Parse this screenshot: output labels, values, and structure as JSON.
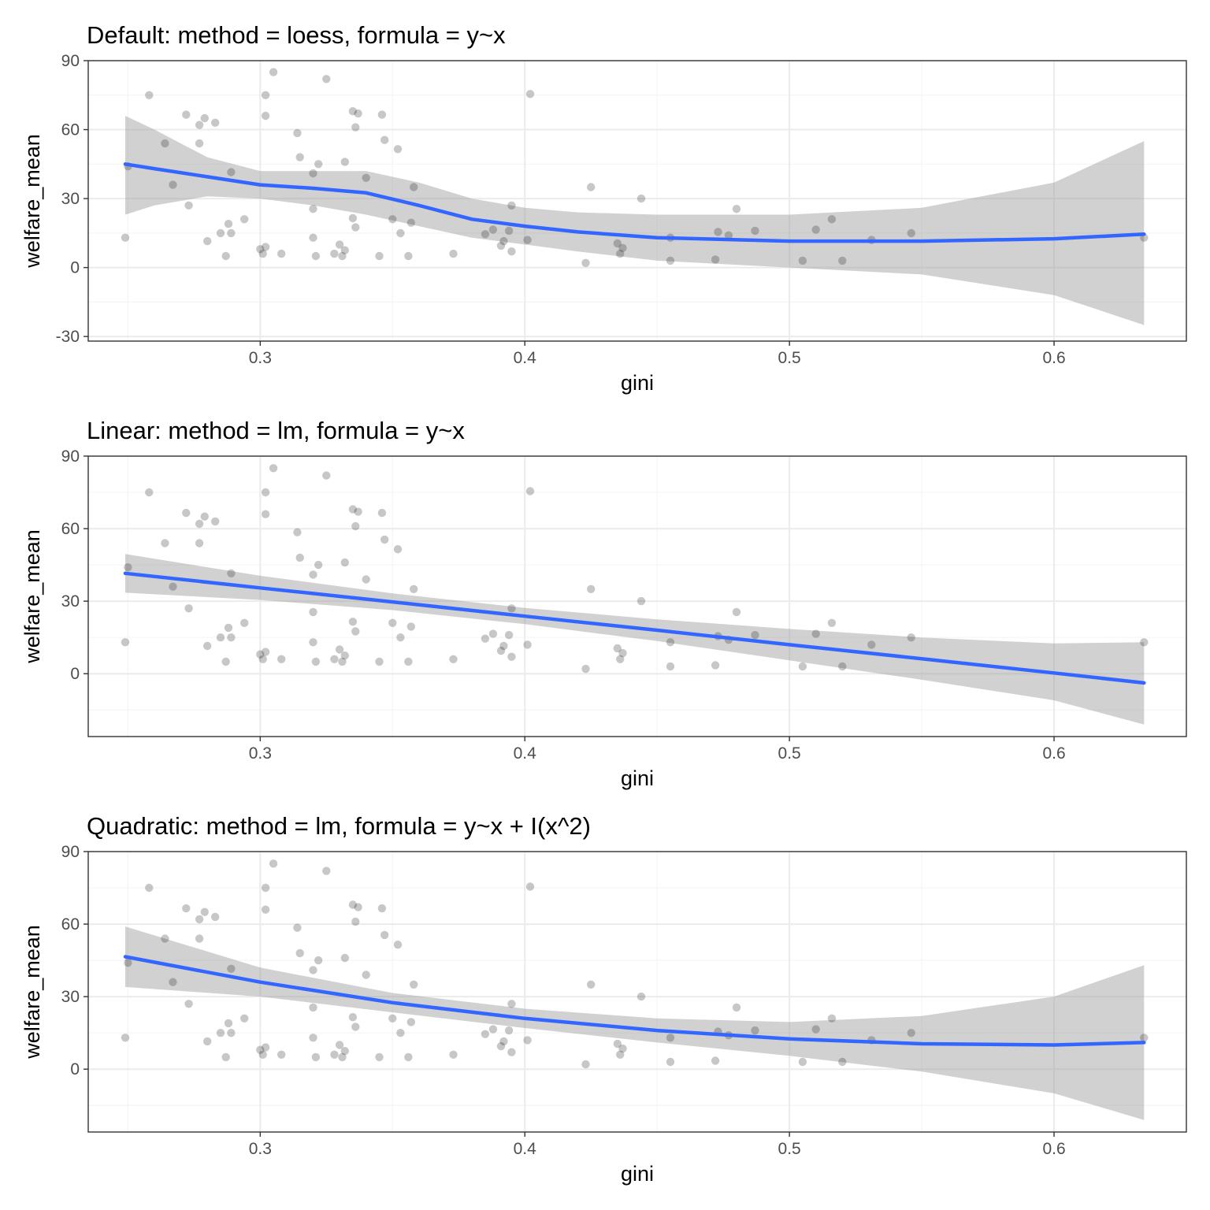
{
  "points": {
    "x": [
      0.249,
      0.25,
      0.258,
      0.264,
      0.267,
      0.272,
      0.273,
      0.277,
      0.277,
      0.279,
      0.28,
      0.283,
      0.285,
      0.287,
      0.288,
      0.289,
      0.289,
      0.294,
      0.3,
      0.301,
      0.302,
      0.302,
      0.302,
      0.305,
      0.308,
      0.314,
      0.315,
      0.32,
      0.32,
      0.32,
      0.321,
      0.322,
      0.325,
      0.328,
      0.33,
      0.331,
      0.332,
      0.332,
      0.335,
      0.335,
      0.336,
      0.336,
      0.337,
      0.34,
      0.345,
      0.346,
      0.347,
      0.35,
      0.352,
      0.353,
      0.356,
      0.357,
      0.358,
      0.373,
      0.385,
      0.388,
      0.391,
      0.392,
      0.394,
      0.395,
      0.395,
      0.401,
      0.402,
      0.423,
      0.425,
      0.435,
      0.436,
      0.437,
      0.444,
      0.455,
      0.455,
      0.472,
      0.473,
      0.477,
      0.48,
      0.487,
      0.505,
      0.51,
      0.516,
      0.52,
      0.531,
      0.546,
      0.634
    ],
    "y": [
      13,
      44,
      75,
      54,
      36,
      66.5,
      27,
      62,
      54,
      65,
      11.5,
      63,
      15,
      5,
      19,
      15,
      41.5,
      21,
      8,
      6,
      9,
      66,
      75,
      85,
      6,
      58.5,
      48,
      25.5,
      13,
      41,
      5,
      45,
      82,
      6,
      10,
      5,
      46,
      7.5,
      68,
      21.5,
      17.5,
      61,
      67,
      39,
      5,
      66.5,
      55.5,
      21,
      51.5,
      15,
      5,
      19.5,
      35,
      6,
      14.5,
      16.5,
      9.5,
      11.5,
      16,
      27,
      7,
      12,
      75.5,
      2,
      35,
      10.5,
      6,
      8.5,
      30,
      13,
      3,
      3.5,
      15.5,
      14,
      25.5,
      16,
      3,
      16.5,
      21,
      3,
      12,
      15,
      13
    ],
    "color": "#000000",
    "opacity": 0.22
  },
  "panels": [
    {
      "title": "Default: method = loess, formula = y~x",
      "xlabel": "gini",
      "ylabel": "welfare_mean",
      "xlim": [
        0.235,
        0.65
      ],
      "ylim": [
        -32,
        90
      ],
      "xticks": [
        0.3,
        0.4,
        0.5,
        0.6
      ],
      "xtick_labels": [
        "0.3",
        "0.4",
        "0.5",
        "0.6"
      ],
      "yticks": [
        -30,
        0,
        30,
        60,
        90
      ],
      "ytick_labels": [
        "-30",
        "0",
        "30",
        "60",
        "90"
      ],
      "chart_data": {
        "type": "scatter",
        "smooth": "loess",
        "fit": {
          "x": [
            0.249,
            0.26,
            0.28,
            0.3,
            0.32,
            0.34,
            0.36,
            0.38,
            0.4,
            0.42,
            0.45,
            0.5,
            0.55,
            0.6,
            0.634
          ],
          "y": [
            45,
            43,
            39.5,
            36,
            34.5,
            32.5,
            27,
            21,
            18,
            15.5,
            13,
            11.5,
            11.5,
            12.5,
            14.5
          ],
          "lower": [
            23,
            27,
            31,
            30,
            27,
            23,
            18,
            13,
            10,
            7,
            3,
            0,
            -3,
            -12,
            -25
          ],
          "upper": [
            66,
            60,
            48,
            42,
            42,
            42,
            37,
            30,
            26,
            24,
            23,
            23,
            26,
            37,
            55
          ]
        }
      }
    },
    {
      "title": "Linear: method = lm, formula = y~x",
      "xlabel": "gini",
      "ylabel": "welfare_mean",
      "xlim": [
        0.235,
        0.65
      ],
      "ylim": [
        -26,
        90
      ],
      "xticks": [
        0.3,
        0.4,
        0.5,
        0.6
      ],
      "xtick_labels": [
        "0.3",
        "0.4",
        "0.5",
        "0.6"
      ],
      "yticks": [
        0,
        30,
        60,
        90
      ],
      "ytick_labels": [
        "0",
        "30",
        "60",
        "90"
      ],
      "chart_data": {
        "type": "scatter",
        "smooth": "lm",
        "fit": {
          "x": [
            0.249,
            0.3,
            0.35,
            0.4,
            0.45,
            0.5,
            0.55,
            0.6,
            0.634
          ],
          "y": [
            41.5,
            35.5,
            29.7,
            23.8,
            18,
            12,
            6.2,
            0.3,
            -3.8
          ],
          "lower": [
            33.5,
            30.5,
            26.3,
            20.5,
            13.5,
            5.5,
            -2.5,
            -11,
            -21
          ],
          "upper": [
            49.5,
            40.5,
            33.2,
            27.2,
            22.5,
            18.5,
            15,
            12.5,
            13
          ]
        }
      }
    },
    {
      "title": "Quadratic: method = lm, formula = y~x + I(x^2)",
      "xlabel": "gini",
      "ylabel": "welfare_mean",
      "xlim": [
        0.235,
        0.65
      ],
      "ylim": [
        -26,
        90
      ],
      "xticks": [
        0.3,
        0.4,
        0.5,
        0.6
      ],
      "xtick_labels": [
        "0.3",
        "0.4",
        "0.5",
        "0.6"
      ],
      "yticks": [
        0,
        30,
        60,
        90
      ],
      "ytick_labels": [
        "0",
        "30",
        "60",
        "90"
      ],
      "chart_data": {
        "type": "scatter",
        "smooth": "lm-quadratic",
        "fit": {
          "x": [
            0.249,
            0.3,
            0.35,
            0.4,
            0.45,
            0.5,
            0.55,
            0.6,
            0.634
          ],
          "y": [
            46.5,
            36,
            27.5,
            21,
            16,
            12.5,
            10.5,
            10,
            11
          ],
          "lower": [
            34,
            30,
            23.5,
            17,
            11,
            5.5,
            -1,
            -10,
            -21
          ],
          "upper": [
            59,
            42,
            31.5,
            25,
            21,
            19.5,
            22,
            30,
            43
          ]
        }
      }
    }
  ],
  "style": {
    "line_color": "#3366ff",
    "ribbon_color": "#999999",
    "ribbon_opacity": 0.45,
    "grid_major": "#ebebeb",
    "grid_minor": "#f5f5f5",
    "panel_border": "#333333",
    "tick_label_color": "#4d4d4d",
    "grid": true
  }
}
